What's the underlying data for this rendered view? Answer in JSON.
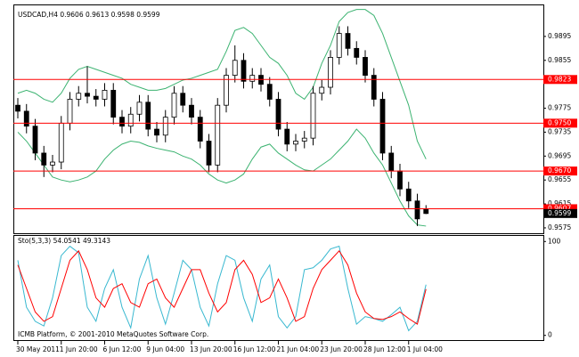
{
  "chart_data": [
    {
      "type": "candlestick",
      "title": "USDCAD,H4  0.9606 0.9613 0.9598 0.9599",
      "categories": [
        "30 May 2011",
        null,
        null,
        null,
        null,
        "1 Jun 20:00",
        null,
        null,
        null,
        null,
        "6 Jun 12:00",
        null,
        null,
        null,
        null,
        "9 Jun 04:00",
        null,
        null,
        null,
        null,
        "13 Jun 20:00",
        null,
        null,
        null,
        null,
        "16 Jun 12:00",
        null,
        null,
        null,
        null,
        "21 Jun 04:00",
        null,
        null,
        null,
        null,
        "23 Jun 20:00",
        null,
        null,
        null,
        null,
        "28 Jun 12:00",
        null,
        null,
        null,
        null,
        "1 Jul 04:00",
        null,
        null
      ],
      "open": [
        0.978,
        0.977,
        0.9745,
        0.97,
        0.968,
        0.9685,
        0.975,
        0.979,
        0.98,
        0.9795,
        0.979,
        0.9805,
        0.976,
        0.9745,
        0.9765,
        0.9785,
        0.974,
        0.973,
        0.976,
        0.98,
        0.978,
        0.976,
        0.972,
        0.968,
        0.978,
        0.983,
        0.9855,
        0.982,
        0.983,
        0.9815,
        0.979,
        0.974,
        0.9715,
        0.972,
        0.9725,
        0.98,
        0.981,
        0.986,
        0.99,
        0.9875,
        0.986,
        0.983,
        0.979,
        0.97,
        0.967,
        0.964,
        0.962,
        0.9606
      ],
      "high": [
        0.9792,
        0.9782,
        0.9757,
        0.9712,
        0.9697,
        0.9762,
        0.9802,
        0.9812,
        0.9845,
        0.9807,
        0.9817,
        0.9817,
        0.9772,
        0.9777,
        0.9797,
        0.9797,
        0.9752,
        0.9772,
        0.9812,
        0.9812,
        0.9792,
        0.9772,
        0.9732,
        0.9792,
        0.9842,
        0.988,
        0.9867,
        0.9842,
        0.9842,
        0.9827,
        0.9802,
        0.9752,
        0.9732,
        0.9737,
        0.9812,
        0.9822,
        0.9872,
        0.9912,
        0.9912,
        0.9887,
        0.9872,
        0.9842,
        0.9802,
        0.9712,
        0.9682,
        0.9652,
        0.9632,
        0.9613
      ],
      "low": [
        0.9758,
        0.9733,
        0.9688,
        0.966,
        0.9668,
        0.9673,
        0.9738,
        0.9778,
        0.9783,
        0.9778,
        0.9778,
        0.9748,
        0.9733,
        0.9733,
        0.9753,
        0.9728,
        0.9718,
        0.9718,
        0.9748,
        0.9768,
        0.9748,
        0.9708,
        0.9668,
        0.9668,
        0.9768,
        0.9818,
        0.9808,
        0.9808,
        0.9803,
        0.9778,
        0.9728,
        0.9703,
        0.9703,
        0.9708,
        0.9713,
        0.9788,
        0.9798,
        0.9848,
        0.9863,
        0.9848,
        0.9818,
        0.9778,
        0.9688,
        0.9658,
        0.9628,
        0.9608,
        0.9578,
        0.9598
      ],
      "close": [
        0.977,
        0.9745,
        0.97,
        0.968,
        0.9685,
        0.975,
        0.979,
        0.98,
        0.9795,
        0.979,
        0.9805,
        0.976,
        0.9745,
        0.9765,
        0.9785,
        0.974,
        0.973,
        0.976,
        0.98,
        0.978,
        0.976,
        0.972,
        0.968,
        0.978,
        0.983,
        0.9855,
        0.982,
        0.983,
        0.9815,
        0.979,
        0.974,
        0.9715,
        0.972,
        0.9725,
        0.98,
        0.981,
        0.986,
        0.99,
        0.9875,
        0.986,
        0.983,
        0.979,
        0.97,
        0.967,
        0.964,
        0.962,
        0.959,
        0.9599
      ],
      "series": [
        {
          "color": "#3cb371",
          "values": [
            0.98,
            0.9805,
            0.98,
            0.979,
            0.9785,
            0.98,
            0.9825,
            0.984,
            0.9845,
            0.984,
            0.9835,
            0.983,
            0.9825,
            0.9815,
            0.981,
            0.9805,
            0.9805,
            0.9808,
            0.9815,
            0.9822,
            0.9825,
            0.983,
            0.9835,
            0.984,
            0.987,
            0.9905,
            0.991,
            0.99,
            0.988,
            0.986,
            0.985,
            0.983,
            0.98,
            0.979,
            0.981,
            0.985,
            0.988,
            0.992,
            0.9935,
            0.994,
            0.994,
            0.993,
            0.99,
            0.986,
            0.982,
            0.978,
            0.972,
            0.969
          ]
        },
        {
          "color": "#3cb371",
          "values": [
            0.9735,
            0.972,
            0.97,
            0.968,
            0.966,
            0.9655,
            0.9652,
            0.9655,
            0.966,
            0.967,
            0.969,
            0.9705,
            0.9715,
            0.972,
            0.9718,
            0.9712,
            0.9708,
            0.9705,
            0.9702,
            0.9695,
            0.969,
            0.968,
            0.9665,
            0.9655,
            0.965,
            0.9655,
            0.9665,
            0.969,
            0.971,
            0.9715,
            0.97,
            0.969,
            0.968,
            0.9672,
            0.967,
            0.968,
            0.969,
            0.9705,
            0.972,
            0.974,
            0.9725,
            0.97,
            0.968,
            0.965,
            0.962,
            0.9595,
            0.958,
            0.9578
          ]
        }
      ],
      "levels": [
        0.9823,
        {
          "value": 0.975,
          "label": "0.9750"
        },
        {
          "value": 0.967,
          "label": "0.9670"
        },
        0.9607
      ],
      "level_color": "#ff0000",
      "current": 0.9599,
      "ylim": [
        0.9566,
        0.9941
      ],
      "yticks": [
        0.9895,
        0.9855,
        0.9775,
        0.9735,
        0.9695,
        0.9655,
        0.9615,
        0.9575
      ]
    },
    {
      "type": "line",
      "title": "Sto(5,3,3) 54.0541 49.3143",
      "annotation": "ICMB Platform, © 2001-2010 MetaQuotes Software Corp.",
      "series": [
        {
          "color": "#38b8d0",
          "values": [
            80,
            30,
            15,
            10,
            40,
            85,
            95,
            88,
            30,
            15,
            50,
            70,
            30,
            8,
            60,
            85,
            40,
            12,
            45,
            80,
            70,
            30,
            10,
            55,
            85,
            80,
            40,
            15,
            60,
            75,
            20,
            8,
            20,
            70,
            72,
            80,
            92,
            95,
            50,
            12,
            20,
            18,
            15,
            22,
            30,
            5,
            15,
            54.0541
          ]
        },
        {
          "color": "#ff0000",
          "values": [
            75,
            50,
            25,
            15,
            20,
            50,
            80,
            90,
            70,
            40,
            30,
            50,
            55,
            35,
            30,
            55,
            60,
            40,
            30,
            50,
            70,
            70,
            45,
            25,
            35,
            70,
            80,
            65,
            35,
            40,
            60,
            40,
            15,
            20,
            50,
            70,
            80,
            90,
            75,
            45,
            25,
            18,
            17,
            20,
            25,
            18,
            12,
            49.3143
          ]
        }
      ],
      "ylim": [
        -5,
        105
      ],
      "yticks": [
        100,
        0
      ]
    }
  ]
}
